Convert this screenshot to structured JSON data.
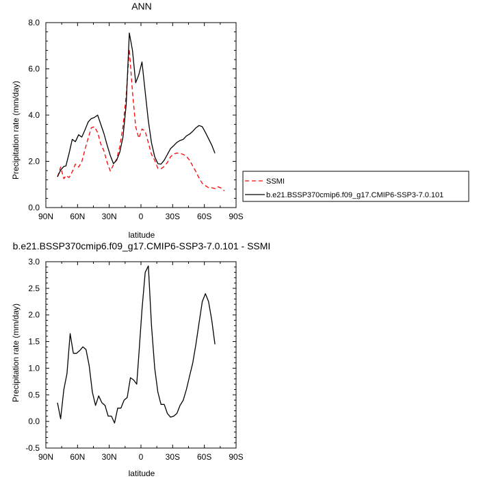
{
  "chart_data": [
    {
      "type": "line",
      "title": "ANN",
      "xlabel": "latitude",
      "ylabel": "Precipitation rate (mm/day)",
      "xlim": [
        90,
        -90
      ],
      "ylim": [
        0,
        8
      ],
      "x_ticks": [
        90,
        60,
        30,
        0,
        -30,
        -60,
        -90
      ],
      "x_tick_labels": [
        "90N",
        "60N",
        "30N",
        "0",
        "30S",
        "60S",
        "90S"
      ],
      "y_ticks": [
        0,
        2,
        4,
        6,
        8
      ],
      "y_tick_labels": [
        "0.0",
        "2.0",
        "4.0",
        "6.0",
        "8.0"
      ],
      "legend_position": "right",
      "series": [
        {
          "name": "SSMI",
          "color": "#ff0000",
          "dash": true,
          "x": [
            79,
            76,
            73,
            71,
            68,
            65,
            62,
            59,
            56,
            53,
            50,
            47,
            44,
            41,
            38,
            35,
            32,
            29,
            26,
            23,
            20,
            17,
            14,
            11,
            8,
            5,
            2,
            -1,
            -4,
            -7,
            -10,
            -13,
            -16,
            -19,
            -22,
            -25,
            -28,
            -31,
            -34,
            -37,
            -40,
            -43,
            -46,
            -49,
            -52,
            -55,
            -58,
            -61,
            -64,
            -67,
            -70,
            -73,
            -76,
            -79
          ],
          "y": [
            1.33,
            1.75,
            1.25,
            1.38,
            1.3,
            1.55,
            1.88,
            1.75,
            1.98,
            2.5,
            3.0,
            3.45,
            3.5,
            3.25,
            2.75,
            2.45,
            1.95,
            1.58,
            1.85,
            2.1,
            2.65,
            3.5,
            4.85,
            6.85,
            5.0,
            3.5,
            3.0,
            3.4,
            3.3,
            2.8,
            2.3,
            2.05,
            1.7,
            1.68,
            1.78,
            1.95,
            2.2,
            2.32,
            2.36,
            2.34,
            2.3,
            2.22,
            2.05,
            1.8,
            1.55,
            1.28,
            1.05,
            0.95,
            0.86,
            0.86,
            0.82,
            0.9,
            0.84,
            0.72
          ]
        },
        {
          "name": "b.e21.BSSP370cmip6.f09_g17.CMIP6-SSP3-7.0.101",
          "color": "#000000",
          "dash": false,
          "x": [
            79,
            76,
            73,
            71,
            68,
            65,
            62,
            59,
            56,
            53,
            50,
            47,
            44,
            41,
            38,
            35,
            32,
            29,
            26,
            23,
            20,
            17,
            14,
            11,
            8,
            5,
            2,
            -1,
            -4,
            -7,
            -10,
            -13,
            -16,
            -19,
            -22,
            -25,
            -28,
            -31,
            -34,
            -37,
            -40,
            -43,
            -46,
            -49,
            -52,
            -55,
            -58,
            -61,
            -64,
            -67,
            -70
          ],
          "y": [
            1.33,
            1.62,
            1.78,
            1.8,
            2.35,
            2.95,
            2.85,
            3.15,
            3.05,
            3.35,
            3.7,
            3.85,
            3.9,
            4.0,
            3.6,
            3.2,
            2.7,
            2.25,
            1.9,
            2.05,
            2.4,
            3.05,
            4.45,
            7.55,
            6.8,
            5.4,
            5.75,
            6.3,
            5.0,
            3.75,
            2.8,
            2.2,
            1.9,
            1.88,
            2.05,
            2.3,
            2.55,
            2.68,
            2.82,
            2.9,
            2.95,
            3.1,
            3.18,
            3.3,
            3.45,
            3.55,
            3.5,
            3.25,
            2.98,
            2.7,
            2.35
          ]
        }
      ]
    },
    {
      "type": "line",
      "title": "b.e21.BSSP370cmip6.f09_g17.CMIP6-SSP3-7.0.101 - SSMI",
      "xlabel": "latitude",
      "ylabel": "Precipitation rate (mm/day)",
      "xlim": [
        90,
        -90
      ],
      "ylim": [
        -0.5,
        3.0
      ],
      "x_ticks": [
        90,
        60,
        30,
        0,
        -30,
        -60,
        -90
      ],
      "x_tick_labels": [
        "90N",
        "60N",
        "30N",
        "0",
        "30S",
        "60S",
        "90S"
      ],
      "y_ticks": [
        -0.5,
        0,
        0.5,
        1.0,
        1.5,
        2.0,
        2.5,
        3.0
      ],
      "y_tick_labels": [
        "-0.5",
        "0.0",
        "0.5",
        "1.0",
        "1.5",
        "2.0",
        "2.5",
        "3.0"
      ],
      "series": [
        {
          "color": "#000000",
          "dash": false,
          "x": [
            79,
            76,
            73,
            70,
            67,
            64,
            61,
            58,
            55,
            52,
            49,
            46,
            43,
            40,
            37,
            34,
            31,
            28,
            25,
            22,
            19,
            16,
            13,
            10,
            7,
            4,
            2,
            -1,
            -4,
            -7,
            -10,
            -13,
            -16,
            -19,
            -22,
            -25,
            -28,
            -31,
            -34,
            -37,
            -40,
            -43,
            -46,
            -49,
            -52,
            -55,
            -58,
            -61,
            -64,
            -67,
            -70
          ],
          "y": [
            0.35,
            0.05,
            0.6,
            0.9,
            1.65,
            1.28,
            1.28,
            1.33,
            1.4,
            1.35,
            1.05,
            0.55,
            0.3,
            0.48,
            0.35,
            0.3,
            0.1,
            0.1,
            -0.03,
            0.25,
            0.25,
            0.4,
            0.45,
            0.82,
            0.78,
            0.7,
            1.25,
            2.1,
            2.8,
            2.92,
            1.8,
            1.0,
            0.55,
            0.32,
            0.32,
            0.15,
            0.08,
            0.1,
            0.15,
            0.3,
            0.4,
            0.6,
            0.85,
            1.1,
            1.45,
            1.85,
            2.25,
            2.4,
            2.25,
            1.9,
            1.45
          ]
        }
      ]
    }
  ]
}
